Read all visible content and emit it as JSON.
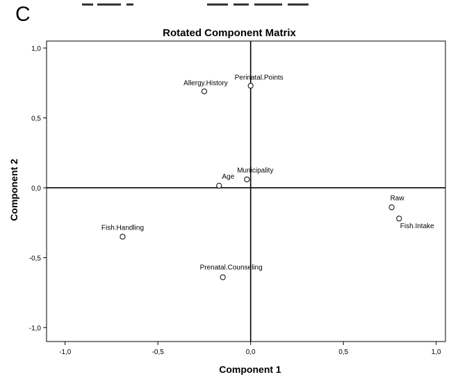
{
  "panel_letter": "C",
  "chart_data": {
    "type": "scatter",
    "title": "Rotated Component Matrix",
    "xlabel": "Component 1",
    "ylabel": "Component 2",
    "xlim": [
      -1.1,
      1.05
    ],
    "ylim": [
      -1.1,
      1.05
    ],
    "x_ticks": [
      -1.0,
      -0.5,
      0.0,
      0.5,
      1.0
    ],
    "y_ticks": [
      -1.0,
      -0.5,
      0.0,
      0.5,
      1.0
    ],
    "x_tick_labels": [
      "-1,0",
      "-0,5",
      "0,0",
      "0,5",
      "1,0"
    ],
    "y_tick_labels": [
      "-1,0",
      "-0,5",
      "0,0",
      "0,5",
      "1,0"
    ],
    "grid": false,
    "reference_lines": {
      "x": 0,
      "y": 0
    },
    "points": [
      {
        "label": "Allergy.History",
        "x": -0.25,
        "y": 0.69
      },
      {
        "label": "Perinatal.Points",
        "x": 0.0,
        "y": 0.73
      },
      {
        "label": "Municipality",
        "x": -0.02,
        "y": 0.06
      },
      {
        "label": "Age",
        "x": -0.17,
        "y": 0.015
      },
      {
        "label": "Raw",
        "x": 0.76,
        "y": -0.14
      },
      {
        "label": "Fish.Intake",
        "x": 0.8,
        "y": -0.22
      },
      {
        "label": "Fish.Handling",
        "x": -0.69,
        "y": -0.35
      },
      {
        "label": "Prenatal.Counseling",
        "x": -0.15,
        "y": -0.64
      }
    ]
  }
}
